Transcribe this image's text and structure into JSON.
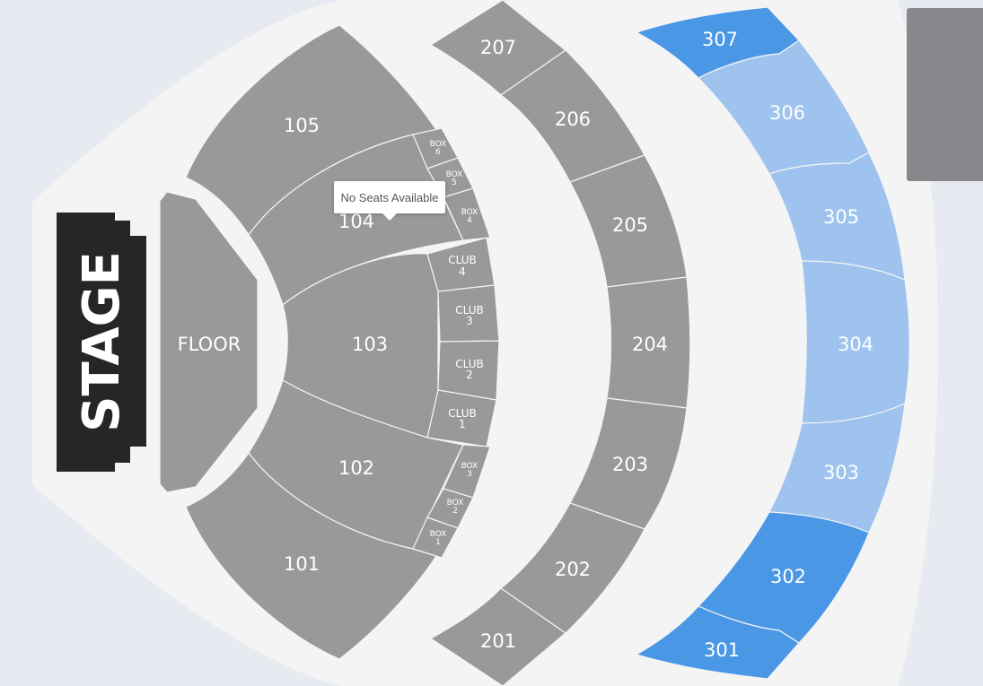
{
  "stage": {
    "label": "STAGE"
  },
  "floor": {
    "label": "FLOOR"
  },
  "tooltip": {
    "text": "No Seats Available"
  },
  "colors": {
    "unavailable": "#999999",
    "available": "#9ec3ee",
    "selected": "#4a97e6",
    "stage": "#262626",
    "venue_bg": "#f4f4f4",
    "page_bg": "#e7eaf0"
  },
  "sections_100": [
    {
      "label": "101"
    },
    {
      "label": "102"
    },
    {
      "label": "103"
    },
    {
      "label": "104"
    },
    {
      "label": "105"
    }
  ],
  "club_boxes": [
    {
      "line1": "CLUB",
      "line2": "4"
    },
    {
      "line1": "CLUB",
      "line2": "3"
    },
    {
      "line1": "CLUB",
      "line2": "2"
    },
    {
      "line1": "CLUB",
      "line2": "1"
    }
  ],
  "boxes": [
    {
      "line1": "BOX",
      "line2": "6"
    },
    {
      "line1": "BOX",
      "line2": "5"
    },
    {
      "line1": "BOX",
      "line2": "4"
    },
    {
      "line1": "BOX",
      "line2": "3"
    },
    {
      "line1": "BOX",
      "line2": "2"
    },
    {
      "line1": "BOX",
      "line2": "1"
    }
  ],
  "sections_200": [
    {
      "label": "201"
    },
    {
      "label": "202"
    },
    {
      "label": "203"
    },
    {
      "label": "204"
    },
    {
      "label": "205"
    },
    {
      "label": "206"
    },
    {
      "label": "207"
    }
  ],
  "sections_300": [
    {
      "label": "301",
      "status": "selected"
    },
    {
      "label": "302",
      "status": "selected"
    },
    {
      "label": "303",
      "status": "available"
    },
    {
      "label": "304",
      "status": "available"
    },
    {
      "label": "305",
      "status": "available"
    },
    {
      "label": "306",
      "status": "available"
    },
    {
      "label": "307",
      "status": "selected"
    }
  ]
}
